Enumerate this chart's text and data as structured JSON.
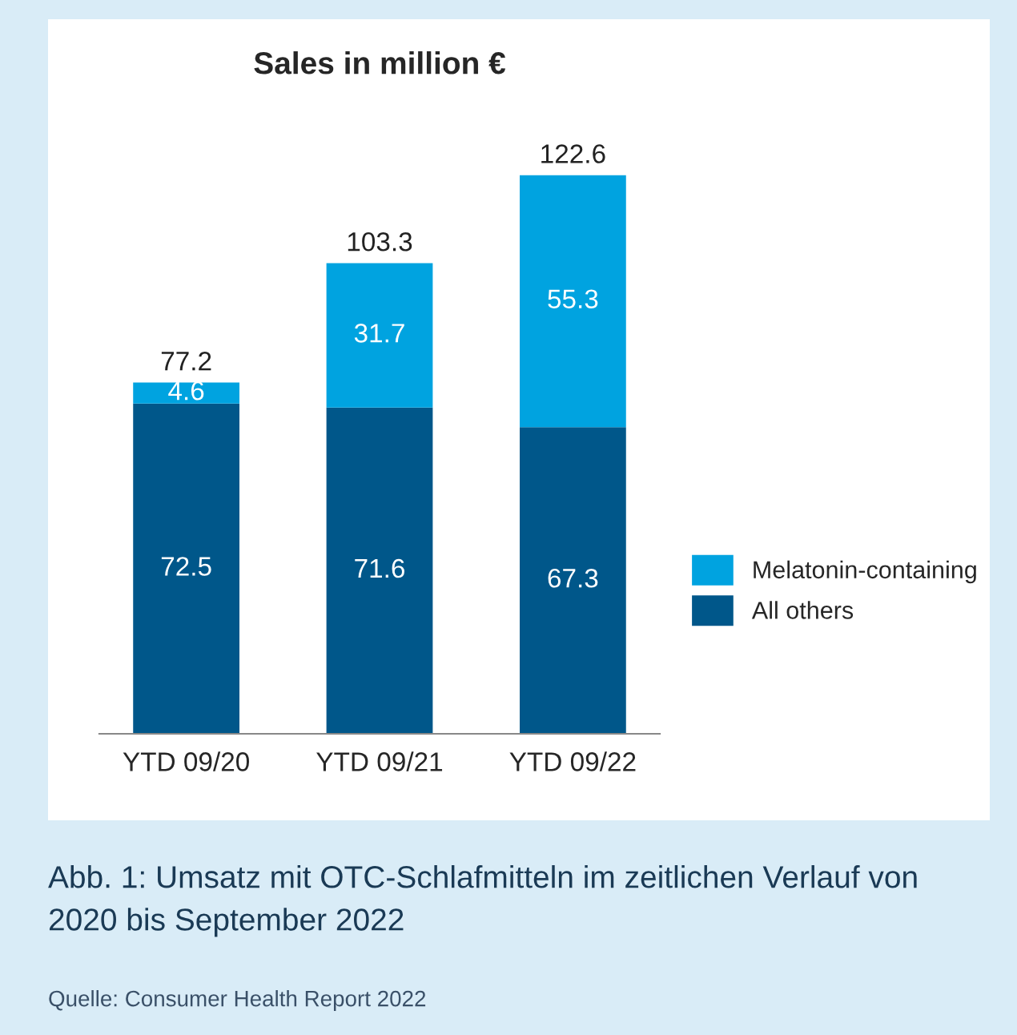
{
  "chart_data": {
    "type": "bar",
    "title": "Sales in million €",
    "categories": [
      "YTD 09/20",
      "YTD 09/21",
      "YTD 09/22"
    ],
    "series": [
      {
        "name": "All others",
        "color": "#00578a",
        "values": [
          72.5,
          71.6,
          67.3
        ]
      },
      {
        "name": "Melatonin-containing",
        "color": "#00a3e0",
        "values": [
          4.6,
          31.7,
          55.3
        ]
      }
    ],
    "stacked": true,
    "data_labels": true,
    "totals": [
      "77.2",
      "103.3",
      "122.6"
    ],
    "legend": "right",
    "annotations": [
      "Abb. 1: Umsatz mit OTC-Schlafmitteln im zeitlichen Verlauf von 2020 bis September 2022",
      "Quelle: Consumer Health Report 2022"
    ]
  }
}
